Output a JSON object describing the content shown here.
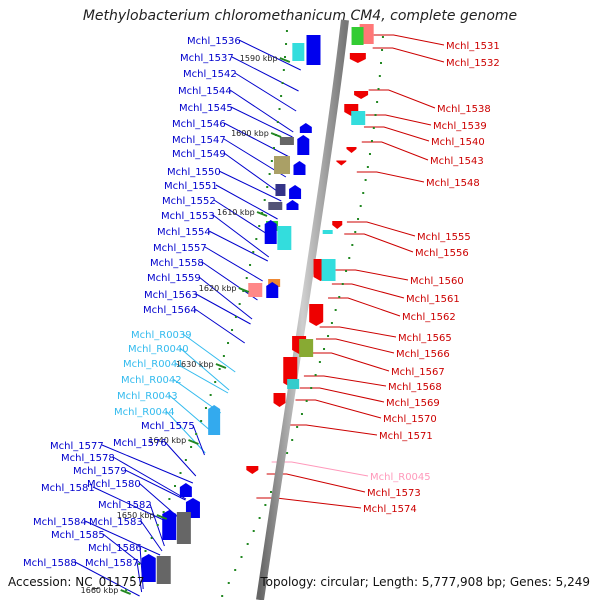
{
  "title": "Methylobacterium chloromethanicum CM4, complete genome",
  "footer": {
    "accession": "Accession: NC_011757",
    "topology": "Topology: circular; Length: 5,777,908 bp; Genes: 5,249"
  },
  "colors": {
    "cds_plus": "#0000ee",
    "cds_minus": "#ee0000",
    "rna_plus": "#33bbee",
    "rna_minus": "#ff99bb",
    "backbone": "#999999",
    "tick": "#228822"
  },
  "kbp_marks": [
    "1590 kbp",
    "1600 kbp",
    "1610 kbp",
    "1620 kbp",
    "1630 kbp",
    "1640 kbp",
    "1650 kbp",
    "1660 kbp"
  ],
  "left_labels": [
    {
      "text": "Mchl_1536",
      "color": "#0000cc"
    },
    {
      "text": "Mchl_1537",
      "color": "#0000cc"
    },
    {
      "text": "Mchl_1542",
      "color": "#0000cc"
    },
    {
      "text": "Mchl_1544",
      "color": "#0000cc"
    },
    {
      "text": "Mchl_1545",
      "color": "#0000cc"
    },
    {
      "text": "Mchl_1546",
      "color": "#0000cc"
    },
    {
      "text": "Mchl_1547",
      "color": "#0000cc"
    },
    {
      "text": "Mchl_1549",
      "color": "#0000cc"
    },
    {
      "text": "Mchl_1550",
      "color": "#0000cc"
    },
    {
      "text": "Mchl_1551",
      "color": "#0000cc"
    },
    {
      "text": "Mchl_1552",
      "color": "#0000cc"
    },
    {
      "text": "Mchl_1553",
      "color": "#0000cc"
    },
    {
      "text": "Mchl_1554",
      "color": "#0000cc"
    },
    {
      "text": "Mchl_1557",
      "color": "#0000cc"
    },
    {
      "text": "Mchl_1558",
      "color": "#0000cc"
    },
    {
      "text": "Mchl_1559",
      "color": "#0000cc"
    },
    {
      "text": "Mchl_1563",
      "color": "#0000cc"
    },
    {
      "text": "Mchl_1564",
      "color": "#0000cc"
    },
    {
      "text": "Mchl_R0039",
      "color": "#33bbee"
    },
    {
      "text": "Mchl_R0040",
      "color": "#33bbee"
    },
    {
      "text": "Mchl_R0041",
      "color": "#33bbee"
    },
    {
      "text": "Mchl_R0042",
      "color": "#33bbee"
    },
    {
      "text": "Mchl_R0043",
      "color": "#33bbee"
    },
    {
      "text": "Mchl_R0044",
      "color": "#33bbee"
    },
    {
      "text": "Mchl_1575",
      "color": "#0000cc"
    },
    {
      "text": "Mchl_1576",
      "color": "#0000cc"
    },
    {
      "text": "Mchl_1577",
      "color": "#0000cc"
    },
    {
      "text": "Mchl_1578",
      "color": "#0000cc"
    },
    {
      "text": "Mchl_1579",
      "color": "#0000cc"
    },
    {
      "text": "Mchl_1580",
      "color": "#0000cc"
    },
    {
      "text": "Mchl_1581",
      "color": "#0000cc"
    },
    {
      "text": "Mchl_1582",
      "color": "#0000cc"
    },
    {
      "text": "Mchl_1583",
      "color": "#0000cc"
    },
    {
      "text": "Mchl_1584",
      "color": "#0000cc"
    },
    {
      "text": "Mchl_1585",
      "color": "#0000cc"
    },
    {
      "text": "Mchl_1586",
      "color": "#0000cc"
    },
    {
      "text": "Mchl_1587",
      "color": "#0000cc"
    },
    {
      "text": "Mchl_1588",
      "color": "#0000cc"
    }
  ],
  "right_labels": [
    {
      "text": "Mchl_1531",
      "color": "#cc0000"
    },
    {
      "text": "Mchl_1532",
      "color": "#cc0000"
    },
    {
      "text": "Mchl_1538",
      "color": "#cc0000"
    },
    {
      "text": "Mchl_1539",
      "color": "#cc0000"
    },
    {
      "text": "Mchl_1540",
      "color": "#cc0000"
    },
    {
      "text": "Mchl_1543",
      "color": "#cc0000"
    },
    {
      "text": "Mchl_1548",
      "color": "#cc0000"
    },
    {
      "text": "Mchl_1555",
      "color": "#cc0000"
    },
    {
      "text": "Mchl_1556",
      "color": "#cc0000"
    },
    {
      "text": "Mchl_1560",
      "color": "#cc0000"
    },
    {
      "text": "Mchl_1561",
      "color": "#cc0000"
    },
    {
      "text": "Mchl_1562",
      "color": "#cc0000"
    },
    {
      "text": "Mchl_1565",
      "color": "#cc0000"
    },
    {
      "text": "Mchl_1566",
      "color": "#cc0000"
    },
    {
      "text": "Mchl_1567",
      "color": "#cc0000"
    },
    {
      "text": "Mchl_1568",
      "color": "#cc0000"
    },
    {
      "text": "Mchl_1569",
      "color": "#cc0000"
    },
    {
      "text": "Mchl_1570",
      "color": "#cc0000"
    },
    {
      "text": "Mchl_1571",
      "color": "#cc0000"
    },
    {
      "text": "Mchl_R0045",
      "color": "#ff99bb"
    },
    {
      "text": "Mchl_1573",
      "color": "#cc0000"
    },
    {
      "text": "Mchl_1574",
      "color": "#cc0000"
    }
  ]
}
